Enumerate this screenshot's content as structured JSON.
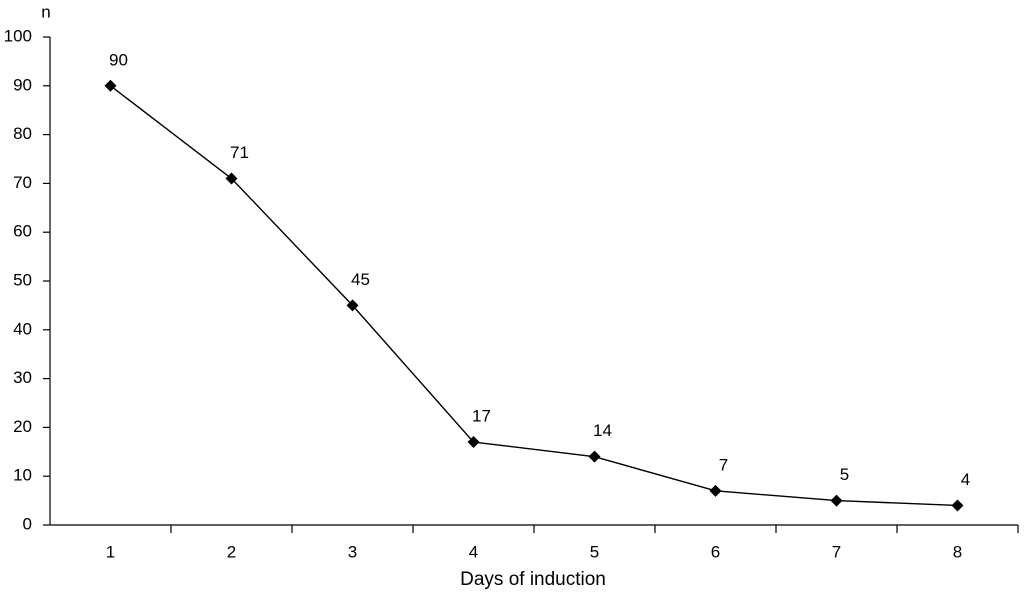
{
  "chart_data": {
    "type": "line",
    "y_label": "n",
    "x_label": "Days of induction",
    "categories": [
      "1",
      "2",
      "3",
      "4",
      "5",
      "6",
      "7",
      "8"
    ],
    "values": [
      90,
      71,
      45,
      17,
      14,
      7,
      5,
      4
    ],
    "color": "#000000",
    "ylim": [
      0,
      100
    ],
    "yticks": [
      0,
      10,
      20,
      30,
      40,
      50,
      60,
      70,
      80,
      90,
      100
    ],
    "data_labels": true,
    "grid": false
  }
}
